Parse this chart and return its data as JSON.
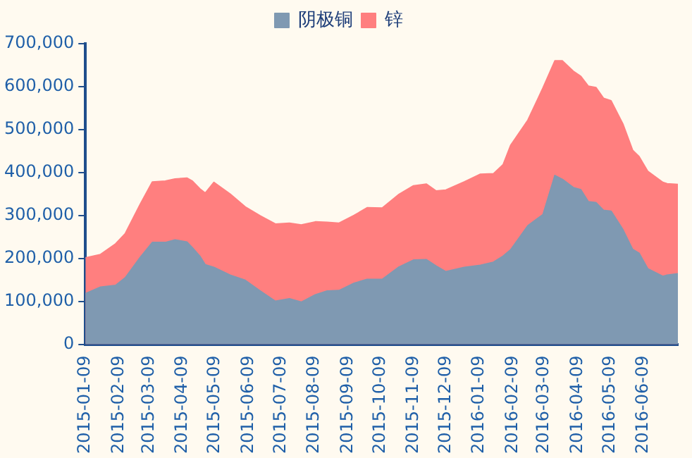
{
  "chart_data": {
    "type": "area",
    "legend": "top",
    "grid": false,
    "x": [
      "2015-01-09",
      "2015-01-23",
      "2015-02-06",
      "2015-02-15",
      "2015-03-01",
      "2015-03-12",
      "2015-03-24",
      "2015-04-02",
      "2015-04-13",
      "2015-04-18",
      "2015-04-25",
      "2015-04-30",
      "2015-05-08",
      "2015-05-23",
      "2015-06-06",
      "2015-06-20",
      "2015-07-04",
      "2015-07-17",
      "2015-07-28",
      "2015-08-10",
      "2015-08-21",
      "2015-09-01",
      "2015-09-15",
      "2015-09-27",
      "2015-10-11",
      "2015-10-26",
      "2015-11-09",
      "2015-11-21",
      "2015-11-30",
      "2015-12-09",
      "2015-12-26",
      "2016-01-10",
      "2016-01-22",
      "2016-01-31",
      "2016-02-07",
      "2016-02-23",
      "2016-03-08",
      "2016-03-19",
      "2016-03-26",
      "2016-04-05",
      "2016-04-12",
      "2016-04-19",
      "2016-04-26",
      "2016-05-03",
      "2016-05-10",
      "2016-05-21",
      "2016-05-30",
      "2016-06-05",
      "2016-06-13",
      "2016-06-27",
      "2016-07-01",
      "2016-07-11"
    ],
    "series": [
      {
        "name": "阴极铜",
        "color": "#7f99b2",
        "values": [
          118000,
          133000,
          137000,
          155000,
          203000,
          237000,
          237000,
          243000,
          238000,
          225000,
          205000,
          185000,
          179000,
          161000,
          149000,
          124000,
          100000,
          106000,
          98000,
          115000,
          124000,
          125000,
          142000,
          151000,
          151000,
          179000,
          196000,
          197000,
          182000,
          169000,
          179000,
          184000,
          191000,
          205000,
          220000,
          276000,
          302000,
          393000,
          384000,
          365000,
          360000,
          332000,
          330000,
          312000,
          310000,
          267000,
          221000,
          212000,
          176000,
          158000,
          161000,
          164000
        ]
      },
      {
        "name": "锌",
        "color": "#ff7f7f",
        "values": [
          201000,
          209000,
          234000,
          258000,
          327000,
          378000,
          380000,
          385000,
          387000,
          380000,
          362000,
          352000,
          377000,
          350000,
          320000,
          299000,
          280000,
          282000,
          278000,
          285000,
          284000,
          282000,
          300000,
          318000,
          317000,
          348000,
          369000,
          373000,
          357000,
          359000,
          378000,
          396000,
          397000,
          418000,
          463000,
          522000,
          597000,
          660000,
          660000,
          636000,
          624000,
          601000,
          598000,
          573000,
          567000,
          513000,
          452000,
          437000,
          403000,
          377000,
          374000,
          372000
        ]
      }
    ],
    "xlim": [
      "2015-01-09",
      "2016-07-11"
    ],
    "xticks": [
      "2015-01-09",
      "2015-02-09",
      "2015-03-09",
      "2015-04-09",
      "2015-05-09",
      "2015-06-09",
      "2015-07-09",
      "2015-08-09",
      "2015-09-09",
      "2015-10-09",
      "2015-11-09",
      "2015-12-09",
      "2016-01-09",
      "2016-02-09",
      "2016-03-09",
      "2016-04-09",
      "2016-05-09",
      "2016-06-09"
    ],
    "ylim": [
      0,
      700000
    ],
    "yticks": [
      {
        "value": 0,
        "label": "0"
      },
      {
        "value": 100000,
        "label": "100,000"
      },
      {
        "value": 200000,
        "label": "200,000"
      },
      {
        "value": 300000,
        "label": "300,000"
      },
      {
        "value": 400000,
        "label": "400,000"
      },
      {
        "value": 500000,
        "label": "500,000"
      },
      {
        "value": 600000,
        "label": "600,000"
      },
      {
        "value": 700000,
        "label": "700,000"
      }
    ]
  }
}
